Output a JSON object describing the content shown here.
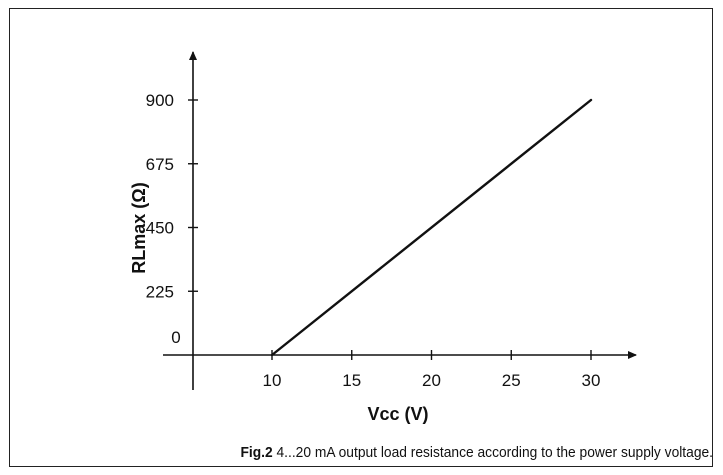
{
  "chart_data": {
    "type": "line",
    "xlabel": "Vcc (V)",
    "ylabel": "RLmax (Ω)",
    "x_ticks": [
      10,
      15,
      20,
      25,
      30
    ],
    "y_ticks": [
      0,
      225,
      450,
      675,
      900
    ],
    "xlim": [
      5,
      32.5
    ],
    "ylim": [
      -80,
      1080
    ],
    "grid": false,
    "series": [
      {
        "x": [
          10,
          30
        ],
        "y": [
          0,
          900
        ]
      }
    ],
    "line_color": "#111111",
    "axis_color": "#111111"
  },
  "caption": {
    "label": "Fig.2",
    "text": " 4...20 mA output load resistance according to the power supply voltage."
  }
}
